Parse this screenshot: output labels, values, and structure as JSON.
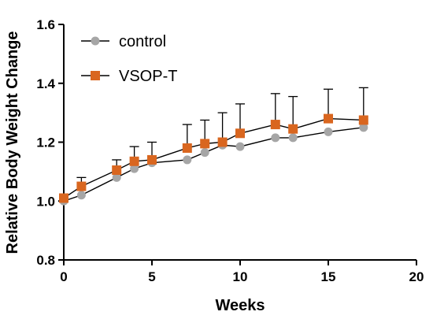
{
  "chart_data": {
    "type": "line",
    "title": "",
    "xlabel": "Weeks",
    "ylabel": "Relative Body Weight Change",
    "xlim": [
      0,
      20
    ],
    "ylim": [
      0.8,
      1.6
    ],
    "x_ticks": [
      0,
      5,
      10,
      15,
      20
    ],
    "y_ticks": [
      "0.8",
      "1.0",
      "1.2",
      "1.4",
      "1.6"
    ],
    "grid": false,
    "legend_position": "top-left",
    "series": [
      {
        "name": "control",
        "marker": "circle",
        "color": "#a6a6a6",
        "x": [
          0,
          1,
          3,
          4,
          5,
          7,
          8,
          9,
          10,
          12,
          13,
          15,
          17
        ],
        "y": [
          1.0,
          1.02,
          1.08,
          1.11,
          1.13,
          1.14,
          1.165,
          1.19,
          1.185,
          1.215,
          1.215,
          1.235,
          1.25
        ],
        "error": [
          0,
          0,
          0,
          0,
          0,
          0,
          0,
          0,
          0,
          0,
          0,
          0,
          0
        ]
      },
      {
        "name": "VSOP-T",
        "marker": "square",
        "color": "#d9661f",
        "x": [
          0,
          1,
          3,
          4,
          5,
          7,
          8,
          9,
          10,
          12,
          13,
          15,
          17
        ],
        "y": [
          1.01,
          1.05,
          1.105,
          1.135,
          1.14,
          1.18,
          1.195,
          1.2,
          1.23,
          1.26,
          1.245,
          1.28,
          1.275
        ],
        "error": [
          0.01,
          0.03,
          0.035,
          0.05,
          0.06,
          0.08,
          0.08,
          0.1,
          0.1,
          0.105,
          0.11,
          0.1,
          0.11
        ]
      }
    ]
  }
}
